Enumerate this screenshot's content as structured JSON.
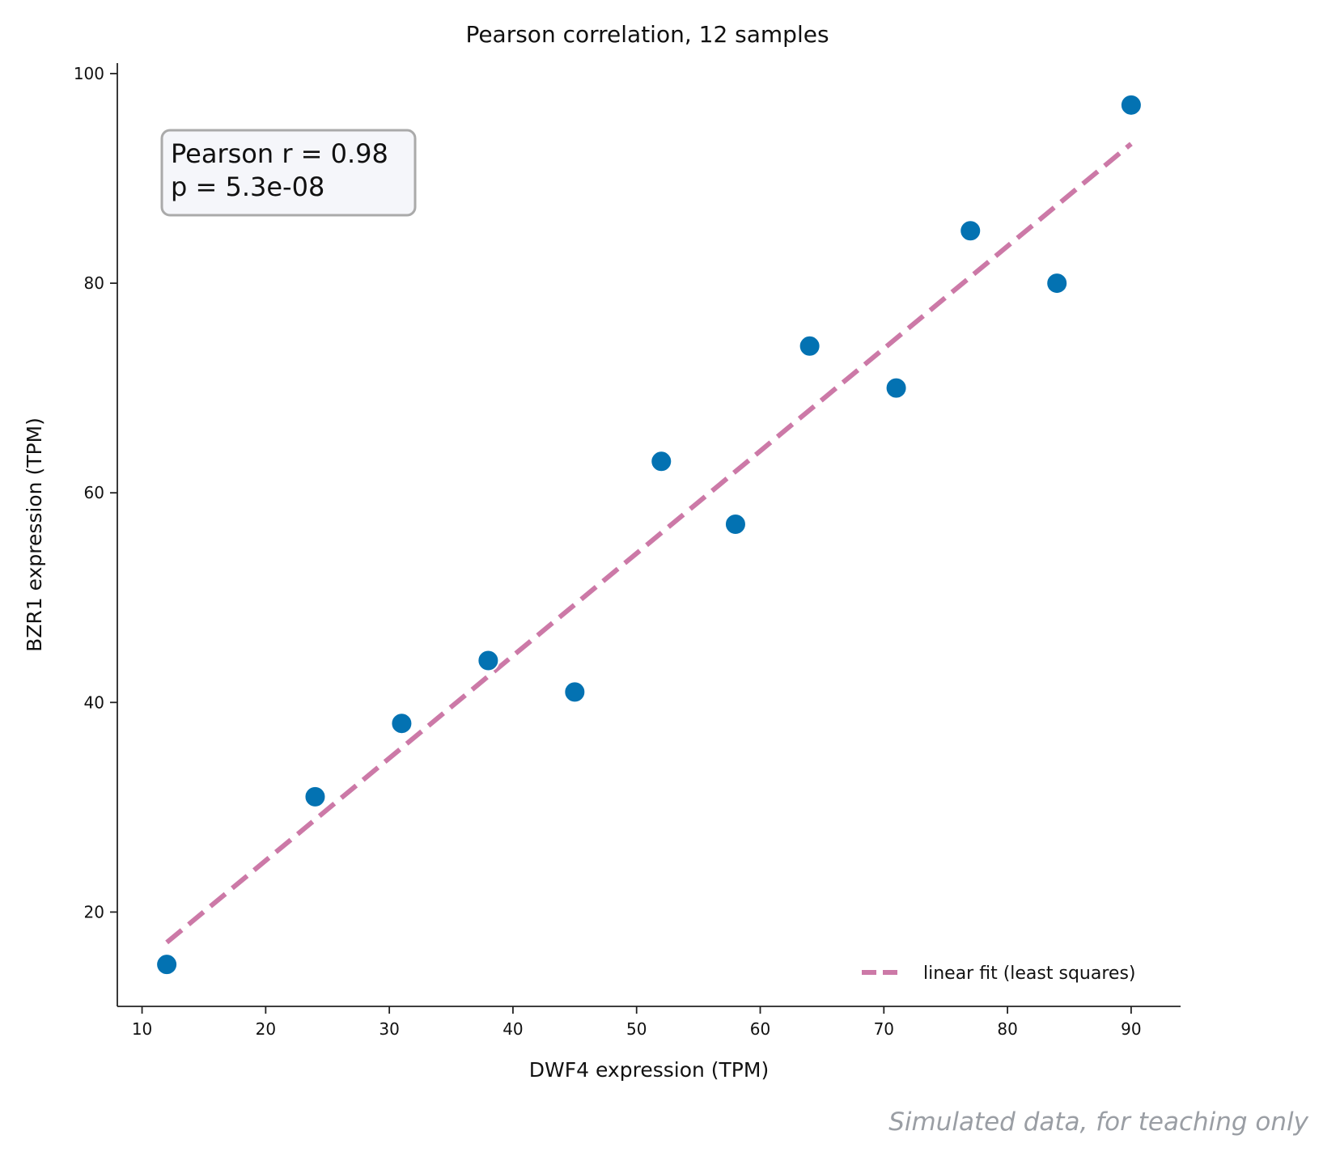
{
  "chart_data": {
    "type": "scatter",
    "title": "Pearson correlation, 12 samples",
    "xlabel": "DWF4 expression (TPM)",
    "ylabel": "BZR1 expression (TPM)",
    "xlim": [
      8,
      94
    ],
    "ylim": [
      11,
      101
    ],
    "xticks": [
      10,
      20,
      30,
      40,
      50,
      60,
      70,
      80,
      90
    ],
    "yticks": [
      20,
      40,
      60,
      80,
      100
    ],
    "grid": false,
    "points": {
      "x": [
        12,
        24,
        31,
        38,
        45,
        52,
        58,
        64,
        71,
        77,
        84,
        90
      ],
      "y": [
        15,
        31,
        38,
        44,
        41,
        63,
        57,
        74,
        70,
        85,
        80,
        97
      ],
      "color": "#0372b2"
    },
    "fit_line": {
      "label": "linear fit (least squares)",
      "x": [
        12,
        90
      ],
      "y": [
        17.1,
        93.3
      ],
      "color": "#cc79a7",
      "style": "dashed"
    },
    "stats_box": {
      "line1": "Pearson r = 0.98",
      "line2": "p = 5.3e-08",
      "placement": "top-left"
    },
    "legend": {
      "placement": "bottom-right"
    },
    "footnote": "Simulated data, for teaching only"
  }
}
